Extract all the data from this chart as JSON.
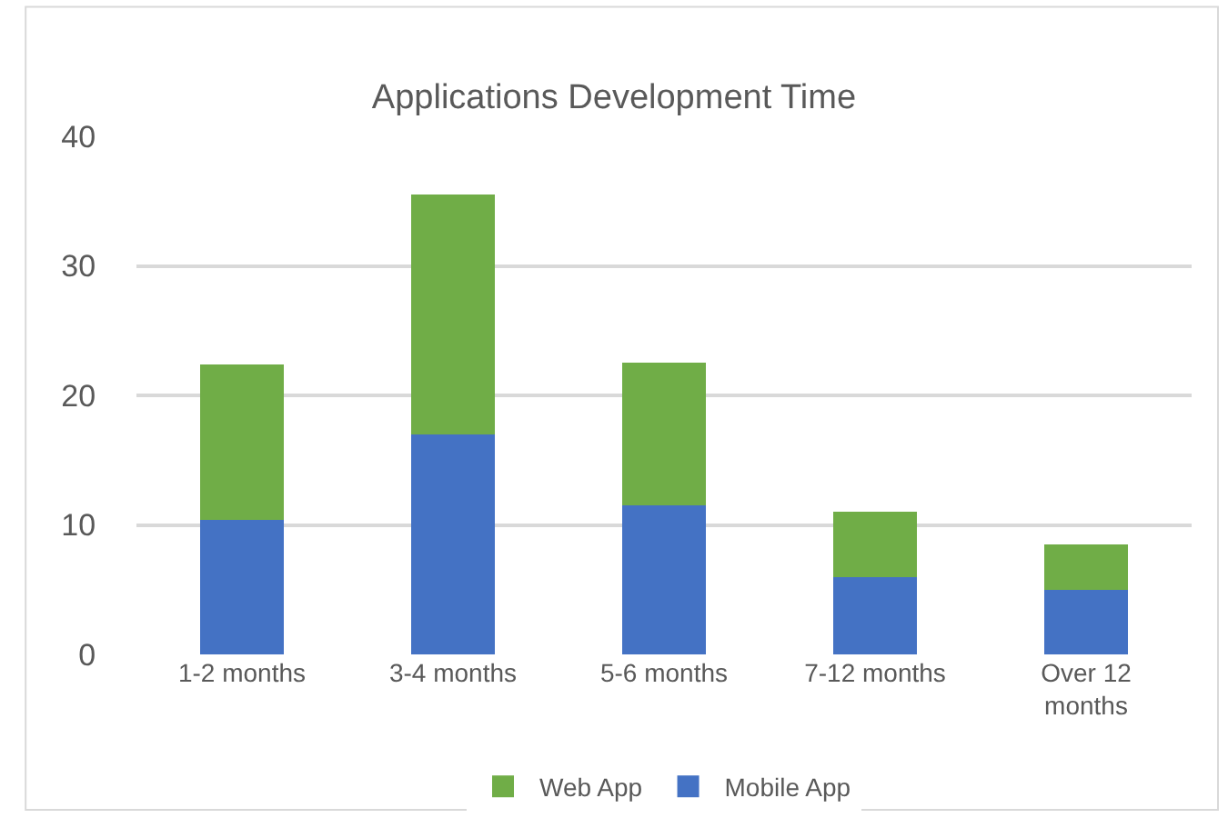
{
  "chart_data": {
    "type": "bar",
    "title": "Applications Development Time",
    "stacked": true,
    "categories": [
      "1-2 months",
      "3-4 months",
      "5-6 months",
      "7-12 months",
      "Over 12 months"
    ],
    "series": [
      {
        "name": "Mobile App",
        "color": "#4472c4",
        "values": [
          10.4,
          17,
          11.5,
          6,
          5
        ]
      },
      {
        "name": "Web App",
        "color": "#70ad47",
        "values": [
          12,
          18.5,
          11,
          5,
          3.5
        ]
      }
    ],
    "ylim": [
      0,
      40
    ],
    "yticks": [
      0,
      10,
      20,
      30,
      40
    ],
    "grid": "y",
    "legend": "bottom"
  }
}
